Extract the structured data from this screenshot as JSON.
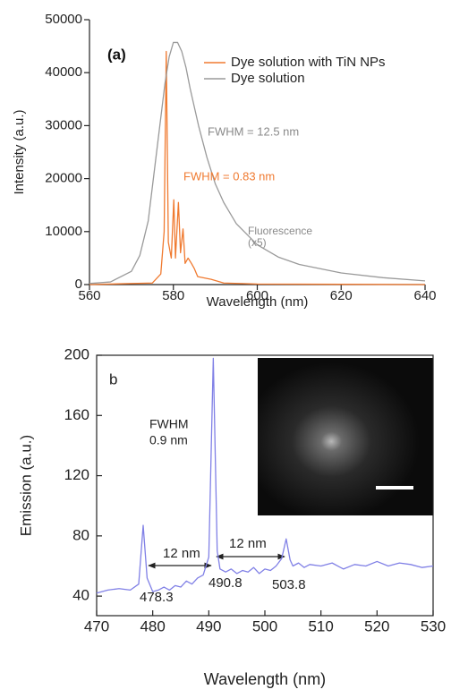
{
  "chart_data": [
    {
      "type": "line",
      "xlabel": "Wavelength (nm)",
      "ylabel": "Intensity (a.u.)",
      "xlim": [
        560,
        640
      ],
      "xticks": [
        560,
        580,
        600,
        620,
        640
      ],
      "ylim": [
        0,
        50000
      ],
      "yticks": [
        0,
        10000,
        20000,
        30000,
        40000,
        50000
      ],
      "series": [
        {
          "name": "Dye solution with TiN NPs",
          "color": "#f07a30",
          "x": [
            560,
            575,
            577,
            577.8,
            578.3,
            578.8,
            579.5,
            580.1,
            580.5,
            581.2,
            581.7,
            582.3,
            582.8,
            583.5,
            584.3,
            585,
            585.8,
            587,
            589,
            592,
            600,
            640
          ],
          "values": [
            0,
            300,
            2000,
            10000,
            44000,
            8000,
            5000,
            16000,
            5000,
            15500,
            6000,
            10500,
            4000,
            5000,
            4000,
            3000,
            1500,
            1300,
            1000,
            300,
            100,
            0
          ]
        },
        {
          "name": "Dye solution",
          "color": "#9a9a9a",
          "x": [
            560,
            565,
            570,
            572,
            574,
            576,
            578,
            579,
            580,
            581,
            582,
            583,
            584,
            586,
            588,
            590,
            592,
            595,
            600,
            605,
            610,
            620,
            630,
            640
          ],
          "values": [
            200,
            500,
            2500,
            5500,
            12000,
            25000,
            38000,
            43000,
            45700,
            45700,
            44000,
            41000,
            37000,
            30000,
            24000,
            19000,
            15500,
            11500,
            7500,
            5200,
            3800,
            2200,
            1300,
            700
          ]
        }
      ],
      "annotations": [
        "(a)",
        "FWHM = 12.5 nm",
        "FWHM = 0.83 nm",
        "Fluorescence",
        "(x5)"
      ]
    },
    {
      "type": "line",
      "xlabel": "Wavelength (nm)",
      "ylabel": "Emission (a.u.)",
      "xlim": [
        470,
        530
      ],
      "xticks": [
        470,
        480,
        490,
        500,
        510,
        520,
        530
      ],
      "ylim": [
        27,
        200
      ],
      "yticks": [
        40,
        80,
        120,
        160,
        200
      ],
      "series": [
        {
          "color": "#8080e6",
          "x": [
            470,
            472,
            474,
            476,
            477.5,
            478.3,
            479,
            480,
            481,
            482,
            483,
            484,
            485,
            486,
            487,
            488,
            489,
            490,
            490.8,
            491.5,
            492,
            493,
            494,
            495,
            496,
            497,
            498,
            499,
            500,
            501,
            502,
            503,
            503.8,
            504.5,
            505,
            506,
            507,
            508,
            510,
            512,
            514,
            516,
            518,
            520,
            522,
            524,
            526,
            528,
            530
          ],
          "values": [
            42,
            44,
            45,
            44,
            48,
            87,
            52,
            43,
            44,
            46,
            44,
            47,
            46,
            50,
            48,
            52,
            54,
            66,
            198,
            70,
            58,
            56,
            58,
            55,
            57,
            56,
            59,
            55,
            58,
            57,
            60,
            65,
            78,
            64,
            60,
            62,
            59,
            61,
            60,
            62,
            58,
            61,
            60,
            63,
            60,
            62,
            61,
            59,
            60
          ]
        }
      ],
      "annotations": [
        "b",
        "FWHM",
        "0.9 nm",
        "12 nm",
        "12 nm",
        "478.3",
        "490.8",
        "503.8"
      ]
    }
  ]
}
